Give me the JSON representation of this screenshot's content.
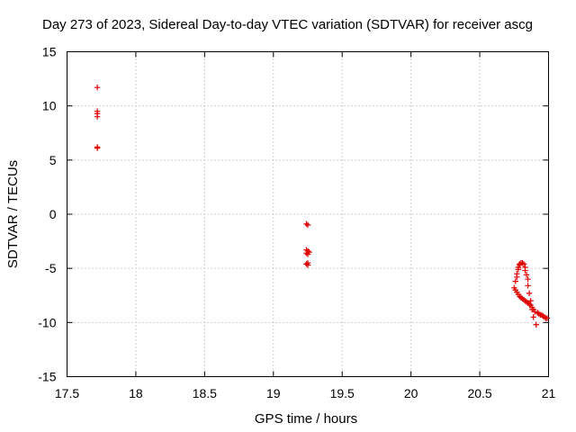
{
  "chart_data": {
    "type": "scatter",
    "title": "Day 273 of 2023, Sidereal Day-to-day VTEC variation (SDTVAR) for receiver ascg",
    "xlabel": "GPS time / hours",
    "ylabel": "SDTVAR / TECUs",
    "xlim": [
      17.5,
      21
    ],
    "ylim": [
      -15,
      15
    ],
    "xticks": [
      17.5,
      18,
      18.5,
      19,
      19.5,
      20,
      20.5,
      21
    ],
    "xtick_labels": [
      "17.5",
      "18",
      "18.5",
      "19",
      "19.5",
      "20",
      "20.5",
      "21"
    ],
    "yticks": [
      -15,
      -10,
      -5,
      0,
      5,
      10,
      15
    ],
    "ytick_labels": [
      "-15",
      "-10",
      "-5",
      "0",
      "5",
      "10",
      "15"
    ],
    "grid": true,
    "marker": "plus",
    "color": "#e00000",
    "series": [
      {
        "name": "SDTVAR",
        "x": [
          17.72,
          17.72,
          17.72,
          17.72,
          17.72,
          17.72,
          19.24,
          19.25,
          19.24,
          19.25,
          19.24,
          19.25,
          19.26,
          19.25,
          19.24,
          19.25,
          20.75,
          20.76,
          20.77,
          20.77,
          20.78,
          20.78,
          20.79,
          20.79,
          20.8,
          20.81,
          20.82,
          20.83,
          20.83,
          20.84,
          20.85,
          20.85,
          20.86,
          20.87,
          20.88,
          20.89,
          20.76,
          20.77,
          20.78,
          20.79,
          20.8,
          20.81,
          20.82,
          20.83,
          20.84,
          20.85,
          20.86,
          20.87,
          20.88,
          20.89,
          20.9,
          20.91,
          20.92,
          20.93,
          20.94,
          20.95,
          20.96,
          20.97,
          20.98,
          20.99
        ],
        "y": [
          11.7,
          9.5,
          9.3,
          9.0,
          6.2,
          6.1,
          -0.9,
          -1.0,
          -3.3,
          -3.4,
          -3.6,
          -3.7,
          -3.5,
          -4.5,
          -4.6,
          -4.7,
          -6.8,
          -6.2,
          -5.8,
          -5.5,
          -5.1,
          -4.9,
          -4.7,
          -4.6,
          -4.5,
          -4.5,
          -4.6,
          -4.9,
          -5.2,
          -5.6,
          -6.0,
          -6.6,
          -7.3,
          -8.0,
          -8.8,
          -9.5,
          -7.0,
          -7.2,
          -7.4,
          -7.6,
          -7.7,
          -7.8,
          -7.9,
          -8.0,
          -8.1,
          -8.2,
          -8.3,
          -8.4,
          -8.6,
          -8.8,
          -9.0,
          -10.2,
          -9.1,
          -9.2,
          -9.3,
          -9.3,
          -9.4,
          -9.5,
          -9.6,
          -9.6
        ]
      }
    ]
  }
}
